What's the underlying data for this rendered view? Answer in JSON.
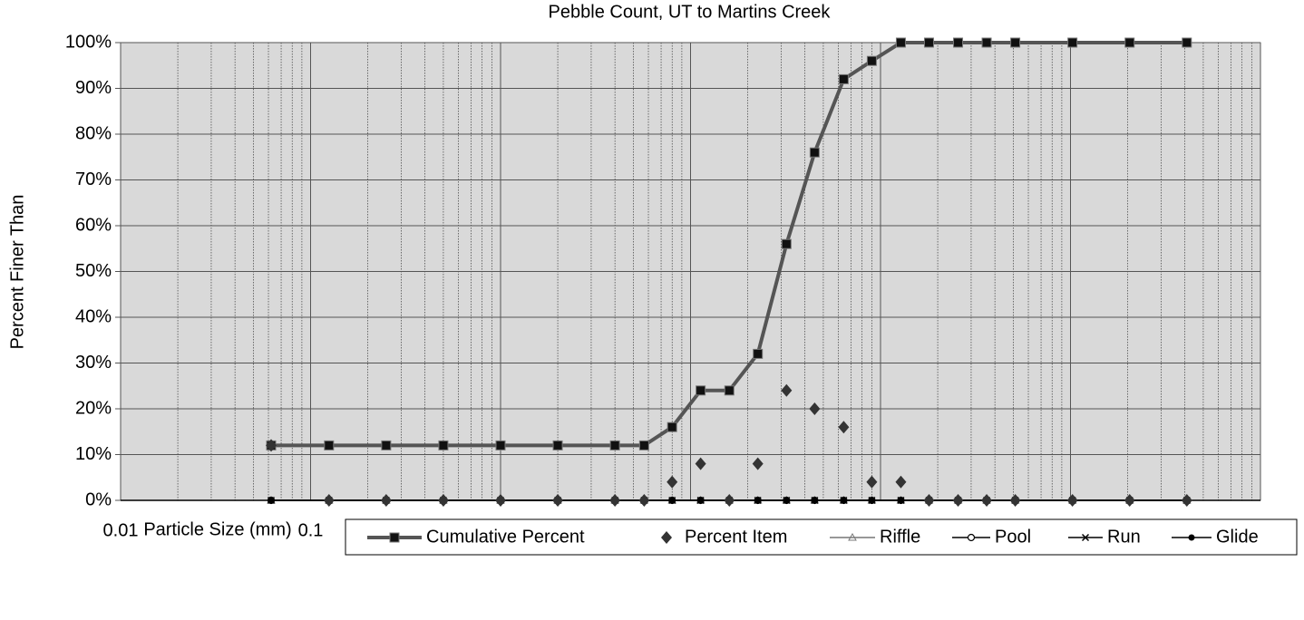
{
  "chart_data": {
    "type": "scatter",
    "title": "Pebble Count,  UT to Martins Creek",
    "x_label": "Particle Size (mm)",
    "y_label": "Percent Finer Than",
    "x_log": true,
    "grid": true,
    "xlim": [
      0.01,
      10000
    ],
    "xticks": [
      0.01,
      0.1,
      1,
      10,
      100,
      1000,
      10000
    ],
    "ylim": [
      0,
      100
    ],
    "yticks": [
      {
        "value": 0,
        "label": "0%"
      },
      {
        "value": 10,
        "label": "10%"
      },
      {
        "value": 20,
        "label": "20%"
      },
      {
        "value": 30,
        "label": "30%"
      },
      {
        "value": 40,
        "label": "40%"
      },
      {
        "value": 50,
        "label": "50%"
      },
      {
        "value": 60,
        "label": "60%"
      },
      {
        "value": 70,
        "label": "70%"
      },
      {
        "value": 80,
        "label": "80%"
      },
      {
        "value": 90,
        "label": "90%"
      },
      {
        "value": 100,
        "label": "100%"
      }
    ],
    "x": [
      0.062,
      0.125,
      0.25,
      0.5,
      1,
      2,
      4,
      5.7,
      8,
      11.3,
      16,
      22.6,
      32,
      45,
      64,
      90,
      128,
      180,
      256,
      362,
      512,
      1024,
      2048,
      4096
    ],
    "series": [
      {
        "name": "Cumulative Percent",
        "color": "#555555",
        "line": true,
        "marker": "square",
        "values": [
          12,
          12,
          12,
          12,
          12,
          12,
          12,
          12,
          16,
          24,
          24,
          32,
          56,
          76,
          92,
          96,
          100,
          100,
          100,
          100,
          100,
          100,
          100,
          100
        ]
      },
      {
        "name": "Percent Item",
        "color": "#333333",
        "line": false,
        "marker": "diamond",
        "values": [
          12,
          0,
          0,
          0,
          0,
          0,
          0,
          0,
          4,
          8,
          0,
          8,
          24,
          20,
          16,
          4,
          4,
          0,
          0,
          0,
          0,
          0,
          0,
          0
        ]
      },
      {
        "name": "Riffle",
        "color": "#777777",
        "line": true,
        "marker": "triangle",
        "values": [
          0,
          0,
          0,
          0,
          0,
          0,
          0,
          0,
          0,
          0,
          0,
          0,
          0,
          0,
          0,
          0,
          0,
          0,
          0,
          0,
          0,
          0,
          0,
          0
        ]
      },
      {
        "name": "Pool",
        "color": "#000000",
        "line": true,
        "marker": "circle-open",
        "values": [
          0,
          0,
          0,
          0,
          0,
          0,
          0,
          0,
          0,
          0,
          0,
          0,
          0,
          0,
          0,
          0,
          0,
          0,
          0,
          0,
          0,
          0,
          0,
          0
        ]
      },
      {
        "name": "Run",
        "color": "#000000",
        "line": true,
        "marker": "x",
        "values": [
          0,
          0,
          0,
          0,
          0,
          0,
          0,
          0,
          0,
          0,
          0,
          0,
          0,
          0,
          0,
          0,
          0,
          0,
          0,
          0,
          0,
          0,
          0,
          0
        ]
      },
      {
        "name": "Glide",
        "color": "#000000",
        "line": true,
        "marker": "circle",
        "values": [
          0,
          0,
          0,
          0,
          0,
          0,
          0,
          0,
          0,
          0,
          0,
          0,
          0,
          0,
          0,
          0,
          0,
          0,
          0,
          0,
          0,
          0,
          0,
          0
        ]
      }
    ]
  }
}
